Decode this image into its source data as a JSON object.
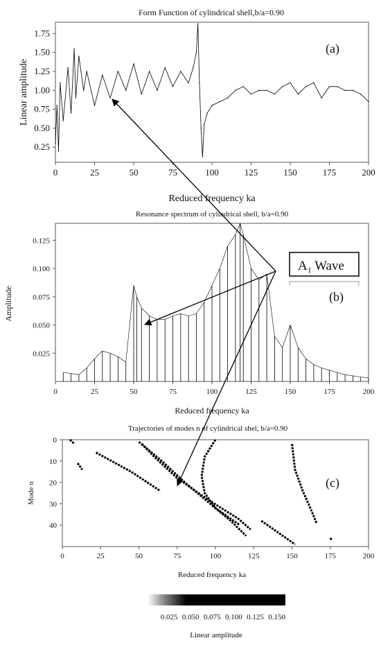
{
  "chart_data": [
    {
      "id": "a",
      "type": "line",
      "title": "Form Function of cylindrical shell,b/a=0.90",
      "panel_label": "(a)",
      "xlabel": "Reduced frequency ka",
      "ylabel": "Linear amplitude",
      "xlim": [
        0,
        200
      ],
      "ylim": [
        0.05,
        1.9
      ],
      "xticks": [
        "0",
        "25",
        "50",
        "75",
        "100",
        "125",
        "150",
        "175",
        "200"
      ],
      "yticks": [
        "0.25",
        "0.50",
        "0.75",
        "1.00",
        "1.25",
        "1.50",
        "1.75"
      ],
      "grid": false,
      "series": [
        {
          "x": [
            0,
            1,
            2,
            3,
            5,
            8,
            10,
            12,
            13,
            15,
            18,
            20,
            25,
            30,
            35,
            40,
            45,
            50,
            55,
            60,
            65,
            70,
            75,
            80,
            85,
            88,
            90,
            91,
            92,
            93,
            94,
            95,
            97,
            100,
            105,
            110,
            115,
            120,
            125,
            130,
            135,
            140,
            145,
            150,
            155,
            160,
            165,
            170,
            175,
            180,
            185,
            190,
            195,
            200
          ],
          "values": [
            0.3,
            0.8,
            0.2,
            1.1,
            0.6,
            1.3,
            0.7,
            1.55,
            0.9,
            1.45,
            1.0,
            1.25,
            0.8,
            1.2,
            0.9,
            1.25,
            1.0,
            1.35,
            0.95,
            1.25,
            1.0,
            1.3,
            1.05,
            1.25,
            1.1,
            1.3,
            1.5,
            1.88,
            1.1,
            0.5,
            0.12,
            0.55,
            0.7,
            0.8,
            0.85,
            0.9,
            1.0,
            1.05,
            0.95,
            1.0,
            1.0,
            0.95,
            1.05,
            1.1,
            0.95,
            1.05,
            1.1,
            0.9,
            1.05,
            1.05,
            1.0,
            1.0,
            0.95,
            0.85
          ]
        }
      ]
    },
    {
      "id": "b",
      "type": "line",
      "title": "Resonance spectrum of cylindrical shell, b/a=0.90",
      "panel_label": "(b)",
      "xlabel": "Reduced frequency ka",
      "ylabel": "Amplitude",
      "xlim": [
        0,
        200
      ],
      "ylim": [
        0,
        0.14
      ],
      "xticks": [
        "0",
        "25",
        "50",
        "75",
        "100",
        "125",
        "150",
        "175",
        "200"
      ],
      "yticks": [
        "0.025",
        "0.050",
        "0.075",
        "0.100",
        "0.125"
      ],
      "grid": false,
      "series": [
        {
          "x": [
            5,
            10,
            15,
            20,
            25,
            30,
            35,
            40,
            45,
            50,
            52,
            55,
            60,
            65,
            70,
            75,
            80,
            85,
            90,
            95,
            100,
            105,
            110,
            115,
            118,
            120,
            125,
            130,
            135,
            140,
            145,
            150,
            155,
            160,
            165,
            170,
            175,
            180,
            185,
            190,
            195,
            200
          ],
          "values": [
            0.008,
            0.007,
            0.006,
            0.012,
            0.02,
            0.027,
            0.025,
            0.022,
            0.017,
            0.085,
            0.075,
            0.065,
            0.058,
            0.055,
            0.055,
            0.058,
            0.06,
            0.058,
            0.06,
            0.07,
            0.085,
            0.1,
            0.12,
            0.13,
            0.14,
            0.13,
            0.1,
            0.09,
            0.095,
            0.04,
            0.03,
            0.05,
            0.03,
            0.02,
            0.015,
            0.012,
            0.01,
            0.008,
            0.006,
            0.005,
            0.004,
            0.003
          ]
        }
      ]
    },
    {
      "id": "c",
      "type": "heatmap",
      "title": "Trajectories of modes n of cylindrical shel, b/a=0.90",
      "panel_label": "(c)",
      "xlabel": "Reduced frequency ka",
      "ylabel": "Mode n",
      "xlim": [
        0,
        200
      ],
      "ylim": [
        50,
        0
      ],
      "xticks": [
        "0",
        "25",
        "50",
        "75",
        "100",
        "125",
        "150",
        "175",
        "200"
      ],
      "yticks": [
        "0",
        "10",
        "20",
        "30",
        "40"
      ],
      "colorbar": {
        "label": "Linear amplitude",
        "ticks": [
          "0.025",
          "0.050",
          "0.075",
          "0.100",
          "0.125",
          "0.150"
        ],
        "range": [
          0,
          0.16
        ]
      },
      "trajectories": [
        {
          "x": [
            5,
            8
          ],
          "n": [
            0,
            2
          ]
        },
        {
          "x": [
            10,
            13
          ],
          "n": [
            11,
            14
          ]
        },
        {
          "x": [
            22,
            45,
            64
          ],
          "n": [
            6,
            15,
            24
          ]
        },
        {
          "x": [
            50,
            65,
            80,
            100,
            116
          ],
          "n": [
            1,
            10,
            20,
            32,
            40
          ]
        },
        {
          "x": [
            52,
            60,
            75,
            95,
            115,
            123
          ],
          "n": [
            2,
            8,
            18,
            28,
            37,
            42
          ]
        },
        {
          "x": [
            100,
            93,
            91,
            93,
            100,
            110,
            120
          ],
          "n": [
            0,
            8,
            17,
            25,
            32,
            38,
            45
          ]
        },
        {
          "x": [
            130,
            140,
            152
          ],
          "n": [
            38,
            43,
            49
          ]
        },
        {
          "x": [
            150,
            152,
            157,
            162,
            166
          ],
          "n": [
            2,
            14,
            24,
            32,
            39
          ]
        },
        {
          "x": [
            175,
            176
          ],
          "n": [
            46,
            47
          ]
        }
      ]
    }
  ],
  "annotation": {
    "wave_label": "A",
    "wave_subscript": "1",
    "wave_suffix": " Wave"
  }
}
